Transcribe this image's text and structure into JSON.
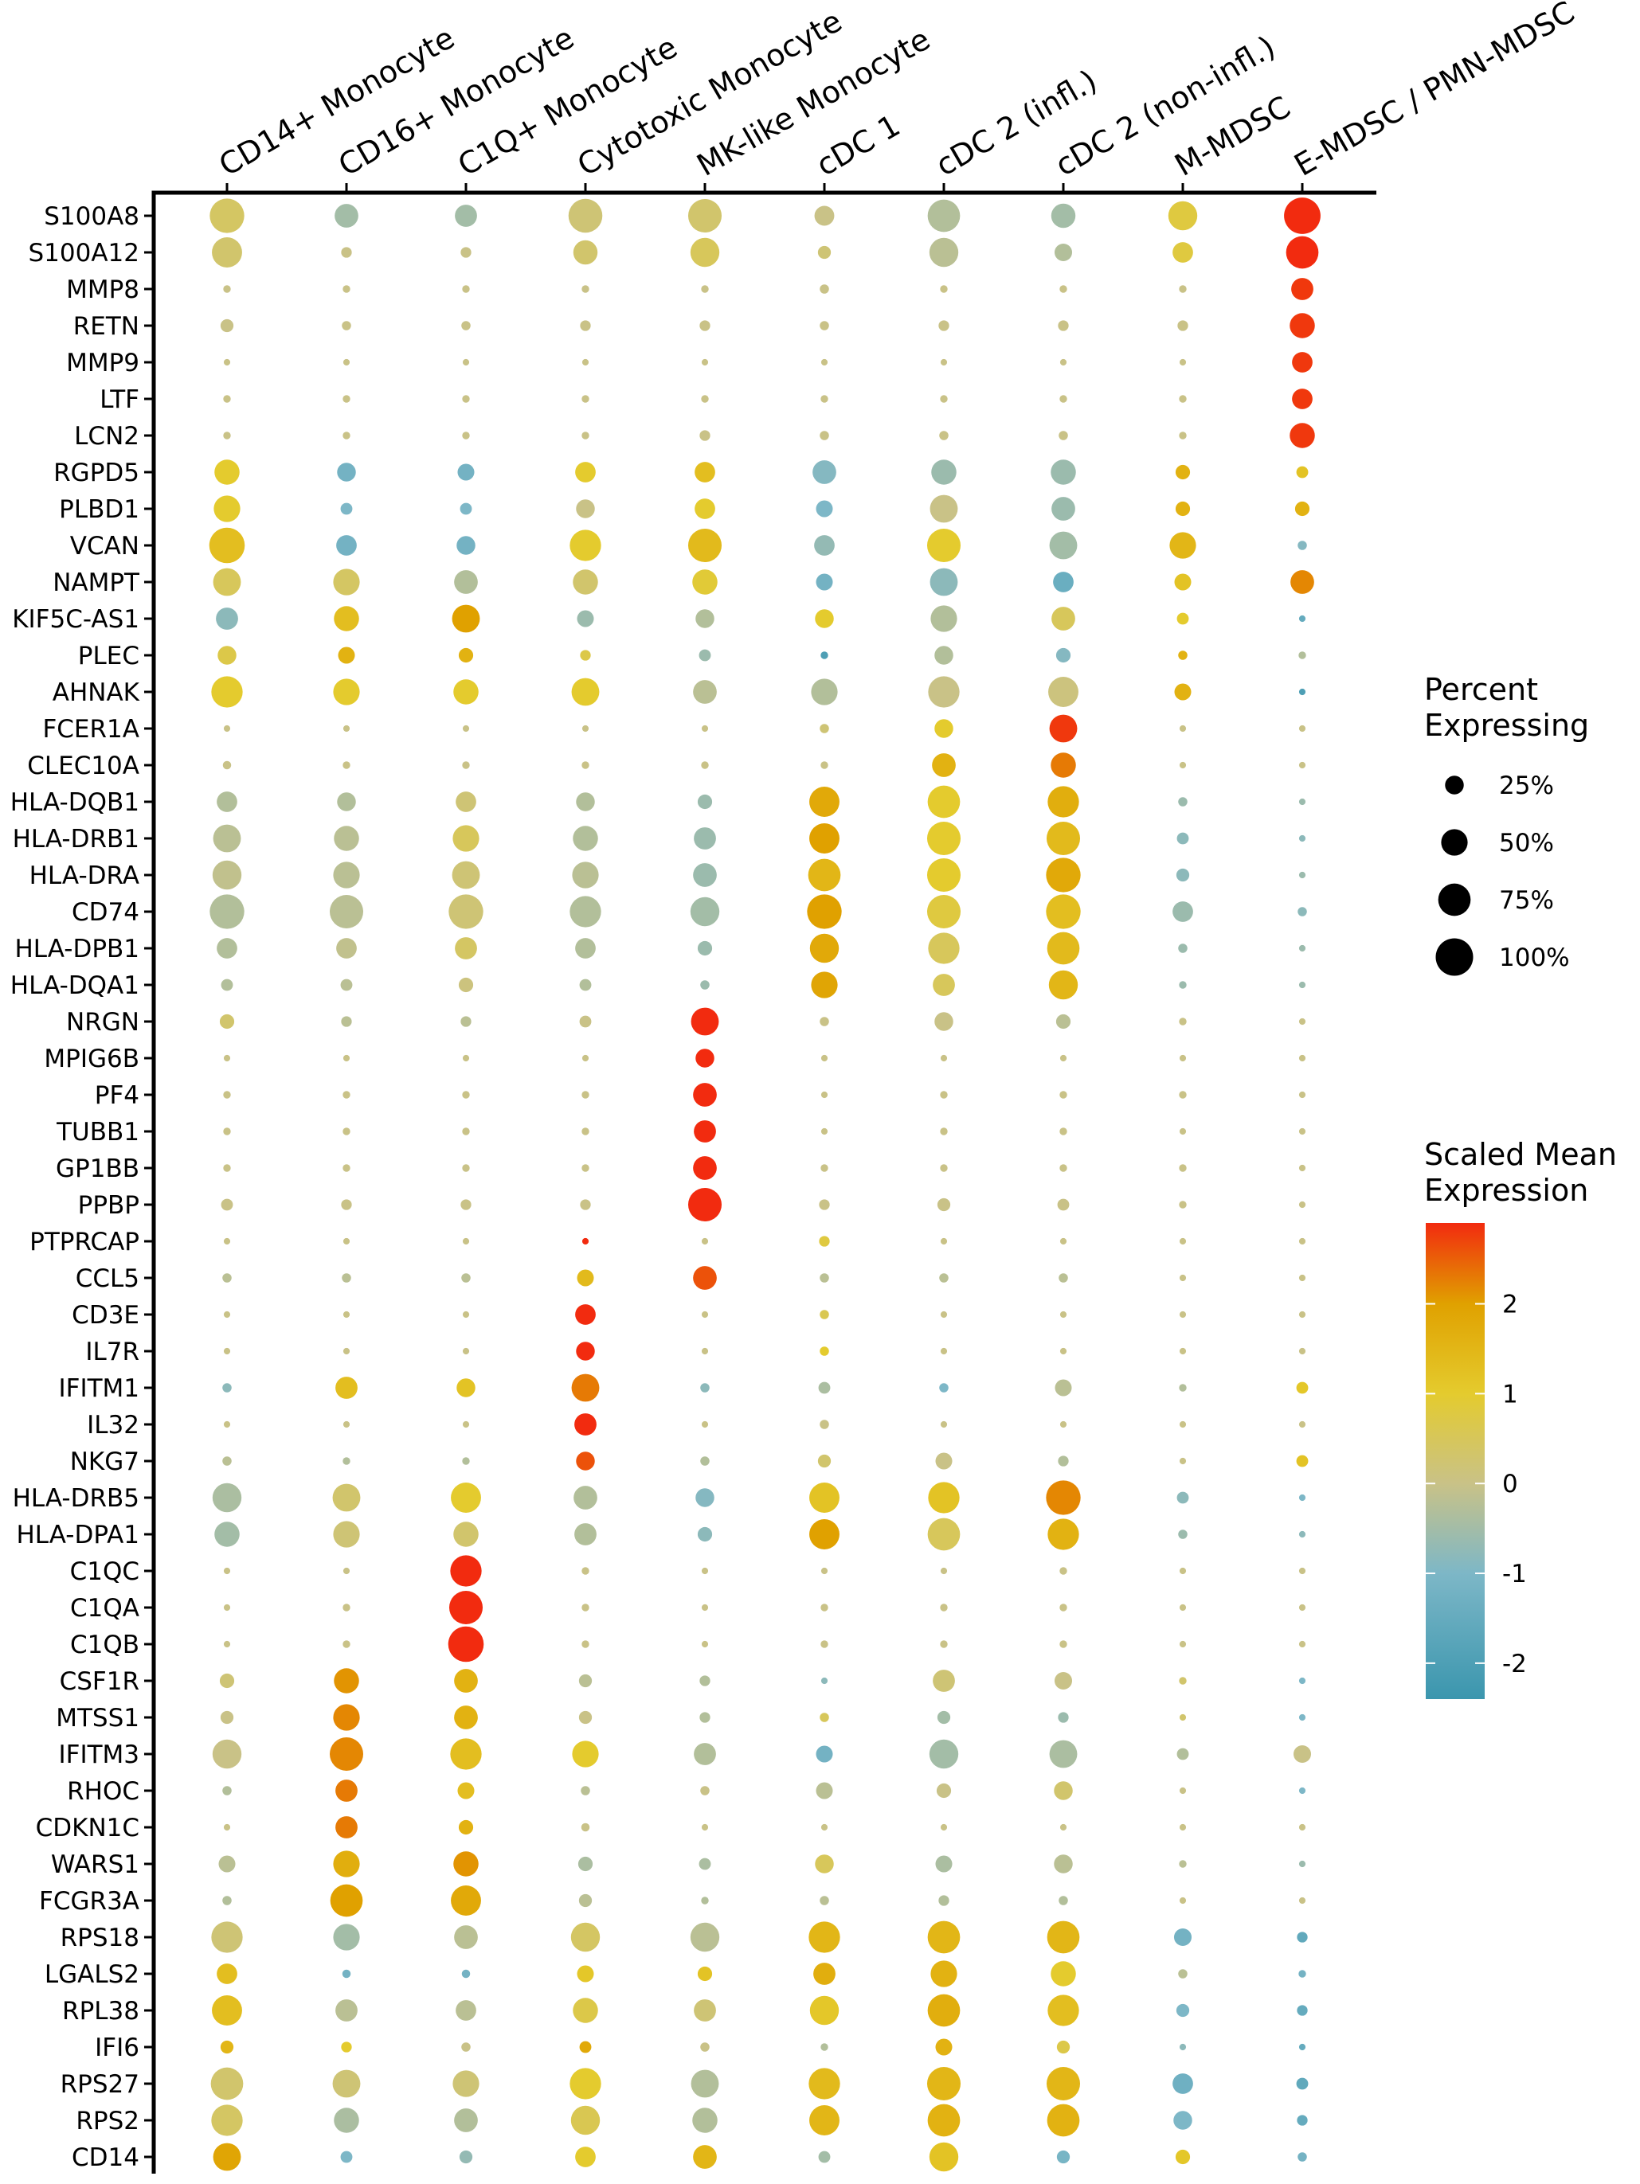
{
  "chart_data": {
    "type": "dotplot",
    "title": "",
    "xlabel": "",
    "ylabel": "",
    "columns": [
      "CD14+ Monocyte",
      "CD16+ Monocyte",
      "C1Q+ Monocyte",
      "Cytotoxic Monocyte",
      "MK-like Monocyte",
      "cDC 1",
      "cDC 2 (infl.)",
      "cDC 2 (non-infl.)",
      "M-MDSC",
      "E-MDSC / PMN-MDSC"
    ],
    "genes": [
      "S100A8",
      "S100A12",
      "MMP8",
      "RETN",
      "MMP9",
      "LTF",
      "LCN2",
      "RGPD5",
      "PLBD1",
      "VCAN",
      "NAMPT",
      "KIF5C-AS1",
      "PLEC",
      "AHNAK",
      "FCER1A",
      "CLEC10A",
      "HLA-DQB1",
      "HLA-DRB1",
      "HLA-DRA",
      "CD74",
      "HLA-DPB1",
      "HLA-DQA1",
      "NRGN",
      "MPIG6B",
      "PF4",
      "TUBB1",
      "GP1BB",
      "PPBP",
      "PTPRCAP",
      "CCL5",
      "CD3E",
      "IL7R",
      "IFITM1",
      "IL32",
      "NKG7",
      "HLA-DRB5",
      "HLA-DPA1",
      "C1QC",
      "C1QA",
      "C1QB",
      "CSF1R",
      "MTSS1",
      "IFITM3",
      "RHOC",
      "CDKN1C",
      "WARS1",
      "FCGR3A",
      "RPS18",
      "LGALS2",
      "RPL38",
      "IFI6",
      "RPS27",
      "RPS2",
      "CD14"
    ],
    "percent_expressing": [
      [
        85,
        40,
        35,
        82,
        80,
        28,
        75,
        42,
        60,
        95
      ],
      [
        65,
        8,
        8,
        42,
        60,
        12,
        60,
        22,
        30,
        75
      ],
      [
        4,
        4,
        4,
        4,
        4,
        6,
        4,
        4,
        4,
        35
      ],
      [
        12,
        6,
        6,
        8,
        8,
        6,
        8,
        8,
        8,
        45
      ],
      [
        3,
        3,
        3,
        3,
        3,
        3,
        3,
        3,
        3,
        30
      ],
      [
        4,
        4,
        4,
        4,
        4,
        4,
        4,
        4,
        4,
        30
      ],
      [
        4,
        4,
        4,
        4,
        8,
        6,
        6,
        6,
        4,
        45
      ],
      [
        45,
        25,
        20,
        30,
        30,
        40,
        45,
        45,
        15,
        10
      ],
      [
        50,
        10,
        10,
        25,
        30,
        20,
        55,
        40,
        15,
        15
      ],
      [
        90,
        30,
        25,
        70,
        80,
        30,
        80,
        55,
        50,
        6
      ],
      [
        55,
        50,
        40,
        45,
        45,
        20,
        55,
        30,
        20,
        40
      ],
      [
        35,
        45,
        55,
        20,
        25,
        25,
        50,
        40,
        10,
        3
      ],
      [
        25,
        20,
        15,
        8,
        10,
        4,
        25,
        15,
        6,
        4
      ],
      [
        70,
        50,
        45,
        55,
        40,
        50,
        70,
        65,
        20,
        3
      ],
      [
        3,
        3,
        3,
        3,
        3,
        6,
        25,
        55,
        3,
        3
      ],
      [
        5,
        4,
        4,
        4,
        4,
        4,
        40,
        45,
        3,
        3
      ],
      [
        30,
        25,
        30,
        25,
        15,
        65,
        75,
        70,
        6,
        3
      ],
      [
        55,
        45,
        50,
        45,
        35,
        65,
        80,
        80,
        10,
        3
      ],
      [
        60,
        50,
        55,
        50,
        40,
        75,
        80,
        85,
        12,
        3
      ],
      [
        85,
        80,
        85,
        70,
        60,
        85,
        80,
        85,
        30,
        6
      ],
      [
        30,
        30,
        35,
        30,
        15,
        60,
        70,
        75,
        6,
        3
      ],
      [
        10,
        10,
        15,
        10,
        6,
        50,
        35,
        60,
        4,
        3
      ],
      [
        15,
        8,
        8,
        10,
        55,
        6,
        25,
        15,
        4,
        3
      ],
      [
        3,
        3,
        3,
        3,
        25,
        3,
        3,
        3,
        3,
        3
      ],
      [
        4,
        4,
        4,
        4,
        40,
        3,
        4,
        4,
        4,
        3
      ],
      [
        4,
        4,
        4,
        4,
        35,
        3,
        4,
        4,
        3,
        3
      ],
      [
        4,
        4,
        4,
        4,
        40,
        4,
        4,
        4,
        4,
        3
      ],
      [
        10,
        8,
        8,
        8,
        80,
        8,
        12,
        10,
        4,
        3
      ],
      [
        3,
        3,
        3,
        3,
        3,
        8,
        3,
        3,
        3,
        3
      ],
      [
        6,
        6,
        6,
        20,
        40,
        6,
        6,
        6,
        3,
        3
      ],
      [
        3,
        3,
        3,
        30,
        3,
        6,
        3,
        3,
        3,
        3
      ],
      [
        3,
        3,
        3,
        25,
        3,
        6,
        3,
        3,
        3,
        3
      ],
      [
        6,
        35,
        25,
        55,
        6,
        10,
        6,
        20,
        4,
        10
      ],
      [
        3,
        3,
        3,
        35,
        3,
        6,
        3,
        3,
        3,
        3
      ],
      [
        6,
        4,
        4,
        25,
        6,
        12,
        20,
        8,
        3,
        10
      ],
      [
        60,
        55,
        65,
        40,
        25,
        65,
        70,
        85,
        10,
        3
      ],
      [
        45,
        50,
        45,
        35,
        15,
        65,
        75,
        70,
        6,
        3
      ],
      [
        3,
        3,
        70,
        4,
        3,
        3,
        3,
        4,
        3,
        3
      ],
      [
        3,
        4,
        80,
        4,
        3,
        4,
        4,
        4,
        3,
        3
      ],
      [
        3,
        4,
        90,
        4,
        3,
        4,
        4,
        4,
        3,
        3
      ],
      [
        15,
        45,
        40,
        12,
        8,
        3,
        35,
        22,
        4,
        3
      ],
      [
        12,
        50,
        40,
        12,
        8,
        6,
        12,
        8,
        3,
        3
      ],
      [
        60,
        80,
        70,
        50,
        35,
        20,
        60,
        55,
        10,
        22
      ],
      [
        6,
        35,
        20,
        6,
        6,
        20,
        15,
        25,
        3,
        3
      ],
      [
        3,
        35,
        15,
        5,
        3,
        3,
        3,
        3,
        3,
        3
      ],
      [
        20,
        50,
        45,
        15,
        10,
        25,
        20,
        25,
        4,
        3
      ],
      [
        6,
        75,
        65,
        12,
        4,
        6,
        8,
        6,
        3,
        3
      ],
      [
        70,
        50,
        40,
        60,
        60,
        70,
        75,
        75,
        22,
        8
      ],
      [
        30,
        5,
        5,
        20,
        15,
        35,
        50,
        45,
        6,
        4
      ],
      [
        65,
        35,
        30,
        45,
        35,
        60,
        75,
        70,
        12,
        8
      ],
      [
        12,
        8,
        6,
        10,
        6,
        4,
        20,
        12,
        3,
        3
      ],
      [
        75,
        55,
        50,
        70,
        55,
        70,
        80,
        80,
        30,
        10
      ],
      [
        70,
        45,
        40,
        60,
        45,
        65,
        75,
        75,
        25,
        8
      ],
      [
        55,
        10,
        12,
        30,
        40,
        10,
        60,
        12,
        15,
        6
      ]
    ],
    "scaled_mean_expression": [
      [
        0.4,
        -0.5,
        -0.5,
        0.2,
        0.3,
        0.0,
        -0.3,
        -0.5,
        0.8,
        2.9
      ],
      [
        0.3,
        0.0,
        0.0,
        0.3,
        0.5,
        0.2,
        -0.2,
        -0.3,
        0.8,
        2.9
      ],
      [
        0.0,
        0.0,
        0.0,
        0.0,
        0.0,
        0.0,
        0.0,
        0.0,
        0.0,
        2.8
      ],
      [
        0.0,
        0.0,
        0.0,
        0.0,
        0.0,
        0.0,
        0.0,
        0.0,
        0.0,
        2.8
      ],
      [
        0.0,
        0.0,
        0.0,
        0.0,
        0.0,
        0.0,
        0.0,
        0.0,
        0.0,
        2.8
      ],
      [
        0.0,
        0.0,
        0.0,
        0.0,
        0.0,
        0.0,
        0.0,
        0.0,
        0.0,
        2.8
      ],
      [
        0.0,
        0.0,
        0.0,
        0.0,
        0.0,
        0.0,
        0.0,
        0.0,
        0.0,
        2.8
      ],
      [
        1.0,
        -1.2,
        -1.2,
        1.0,
        1.3,
        -0.9,
        -0.6,
        -0.6,
        1.6,
        1.2
      ],
      [
        1.0,
        -1.0,
        -1.0,
        0.0,
        1.0,
        -1.0,
        0.0,
        -0.6,
        1.6,
        1.6
      ],
      [
        1.3,
        -1.2,
        -1.2,
        1.0,
        1.4,
        -0.7,
        1.0,
        -0.5,
        1.5,
        -0.9
      ],
      [
        0.5,
        0.4,
        -0.3,
        0.3,
        0.9,
        -1.2,
        -0.8,
        -1.4,
        1.2,
        2.2
      ],
      [
        -0.8,
        1.3,
        2.0,
        -0.6,
        -0.3,
        1.0,
        -0.3,
        0.5,
        1.0,
        -1.5
      ],
      [
        0.7,
        1.6,
        1.6,
        0.7,
        -0.6,
        -2.0,
        -0.3,
        -0.9,
        1.6,
        -0.3
      ],
      [
        1.0,
        1.0,
        1.0,
        1.0,
        -0.2,
        -0.3,
        0.0,
        0.1,
        1.6,
        -2.0
      ],
      [
        0.0,
        0.0,
        0.0,
        0.0,
        0.0,
        0.2,
        1.0,
        2.8,
        0.0,
        0.0
      ],
      [
        0.0,
        0.0,
        0.0,
        0.0,
        0.0,
        0.0,
        1.6,
        2.3,
        0.0,
        0.0
      ],
      [
        -0.3,
        -0.3,
        0.2,
        -0.3,
        -0.6,
        1.8,
        1.0,
        1.7,
        -0.6,
        -0.6
      ],
      [
        -0.2,
        -0.2,
        0.5,
        -0.3,
        -0.6,
        2.0,
        1.0,
        1.4,
        -0.8,
        -0.8
      ],
      [
        -0.1,
        -0.2,
        0.2,
        -0.2,
        -0.6,
        1.5,
        1.0,
        1.8,
        -0.8,
        -0.6
      ],
      [
        -0.3,
        -0.2,
        0.2,
        -0.3,
        -0.5,
        2.0,
        0.8,
        1.3,
        -0.6,
        -0.8
      ],
      [
        -0.3,
        -0.1,
        0.4,
        -0.3,
        -0.6,
        1.8,
        0.5,
        1.4,
        -0.6,
        -0.6
      ],
      [
        -0.3,
        -0.2,
        0.1,
        -0.3,
        -0.6,
        1.9,
        0.5,
        1.5,
        -0.6,
        -0.6
      ],
      [
        0.3,
        -0.2,
        -0.2,
        0.0,
        2.9,
        0.0,
        0.0,
        -0.2,
        0.0,
        0.0
      ],
      [
        0.0,
        0.0,
        0.0,
        0.0,
        2.9,
        0.0,
        0.0,
        0.0,
        0.0,
        0.0
      ],
      [
        0.0,
        0.0,
        0.0,
        0.0,
        2.9,
        0.0,
        0.0,
        0.0,
        0.0,
        0.0
      ],
      [
        0.0,
        0.0,
        0.0,
        0.0,
        2.9,
        0.0,
        0.0,
        0.0,
        0.0,
        0.0
      ],
      [
        0.0,
        0.0,
        0.0,
        0.0,
        2.9,
        0.0,
        0.0,
        0.0,
        0.0,
        0.0
      ],
      [
        0.0,
        0.0,
        0.0,
        0.0,
        2.9,
        0.0,
        0.0,
        0.0,
        0.0,
        0.0
      ],
      [
        0.0,
        0.0,
        0.0,
        2.9,
        0.0,
        0.8,
        0.0,
        0.0,
        0.0,
        0.0
      ],
      [
        -0.2,
        -0.2,
        -0.2,
        1.4,
        2.6,
        -0.2,
        -0.2,
        -0.2,
        0.0,
        0.0
      ],
      [
        0.0,
        0.0,
        0.0,
        2.9,
        0.0,
        0.6,
        0.0,
        0.0,
        0.0,
        0.0
      ],
      [
        0.0,
        0.0,
        0.0,
        2.9,
        0.0,
        1.0,
        0.0,
        0.0,
        0.0,
        0.0
      ],
      [
        -0.8,
        1.3,
        1.2,
        2.3,
        -0.8,
        -0.4,
        -1.0,
        -0.2,
        -0.3,
        1.1
      ],
      [
        0.0,
        0.0,
        0.0,
        2.9,
        0.0,
        0.0,
        0.0,
        0.0,
        0.0,
        0.0
      ],
      [
        -0.2,
        -0.3,
        -0.3,
        2.6,
        -0.3,
        0.3,
        0.0,
        -0.3,
        0.0,
        1.2
      ],
      [
        -0.4,
        0.3,
        1.0,
        -0.3,
        -0.9,
        1.2,
        1.2,
        2.2,
        -0.8,
        -1.0
      ],
      [
        -0.5,
        0.2,
        0.3,
        -0.3,
        -0.8,
        2.0,
        0.5,
        1.6,
        -0.6,
        -0.8
      ],
      [
        0.0,
        0.0,
        2.9,
        0.0,
        0.0,
        0.0,
        0.0,
        0.0,
        0.0,
        0.0
      ],
      [
        0.0,
        0.0,
        2.9,
        0.0,
        0.0,
        0.0,
        0.0,
        0.0,
        0.0,
        0.0
      ],
      [
        0.0,
        0.0,
        2.9,
        0.0,
        0.0,
        0.0,
        0.0,
        0.0,
        0.0,
        0.0
      ],
      [
        0.2,
        2.1,
        1.6,
        -0.2,
        -0.3,
        -0.8,
        0.2,
        0.0,
        0.3,
        -1.0
      ],
      [
        0.0,
        2.2,
        1.6,
        0.0,
        -0.3,
        0.5,
        -0.5,
        -0.6,
        0.3,
        -1.0
      ],
      [
        0.0,
        2.2,
        1.3,
        1.0,
        -0.3,
        -1.2,
        -0.5,
        -0.4,
        -0.3,
        0.0
      ],
      [
        -0.3,
        2.3,
        1.3,
        -0.2,
        0.0,
        -0.2,
        0.0,
        0.3,
        0.0,
        -1.0
      ],
      [
        0.0,
        2.3,
        1.6,
        0.0,
        0.0,
        0.0,
        0.0,
        0.0,
        0.0,
        0.0
      ],
      [
        -0.2,
        1.7,
        2.1,
        -0.4,
        -0.4,
        0.5,
        -0.4,
        -0.2,
        -0.2,
        -0.6
      ],
      [
        -0.3,
        2.0,
        1.8,
        -0.2,
        -0.3,
        -0.2,
        -0.3,
        -0.3,
        0.0,
        0.0
      ],
      [
        0.2,
        -0.5,
        -0.2,
        0.4,
        -0.2,
        1.5,
        1.5,
        1.5,
        -1.2,
        -1.6
      ],
      [
        1.3,
        -1.2,
        -1.2,
        1.1,
        1.2,
        1.7,
        1.6,
        1.0,
        -0.2,
        -1.2
      ],
      [
        1.3,
        -0.2,
        -0.2,
        0.7,
        0.2,
        1.1,
        1.7,
        1.3,
        -1.0,
        -1.5
      ],
      [
        1.5,
        1.0,
        0.0,
        1.8,
        0.0,
        -0.3,
        1.6,
        0.7,
        -0.8,
        -1.5
      ],
      [
        0.3,
        0.2,
        0.2,
        1.0,
        -0.3,
        1.4,
        1.5,
        1.5,
        -1.3,
        -1.6
      ],
      [
        0.4,
        -0.4,
        -0.3,
        0.6,
        -0.3,
        1.5,
        1.6,
        1.6,
        -1.0,
        -1.5
      ],
      [
        1.9,
        -1.0,
        -0.7,
        1.0,
        1.5,
        -0.5,
        1.2,
        -1.1,
        1.1,
        -1.2
      ]
    ],
    "size_legend": {
      "title_line1": "Percent",
      "title_line2": "Expressing",
      "entries": [
        {
          "value": 25,
          "label": "25%"
        },
        {
          "value": 50,
          "label": "50%"
        },
        {
          "value": 75,
          "label": "75%"
        },
        {
          "value": 100,
          "label": "100%"
        }
      ]
    },
    "color_legend": {
      "title_line1": "Scaled Mean",
      "title_line2": "Expression",
      "range": [
        -2.4,
        2.9
      ],
      "ticks": [
        {
          "value": 2,
          "label": "2"
        },
        {
          "value": 1,
          "label": "1"
        },
        {
          "value": 0,
          "label": "0"
        },
        {
          "value": -1,
          "label": "-1"
        },
        {
          "value": -2,
          "label": "-2"
        }
      ],
      "gradient": [
        {
          "value": -2.4,
          "color": "#3b96ae"
        },
        {
          "value": -1.0,
          "color": "#7db7c7"
        },
        {
          "value": 0.0,
          "color": "#c9c287"
        },
        {
          "value": 1.0,
          "color": "#e4cb2e"
        },
        {
          "value": 2.0,
          "color": "#e0a100"
        },
        {
          "value": 2.9,
          "color": "#f22b0f"
        }
      ]
    },
    "colors": {
      "axis": "#000000",
      "text": "#000000",
      "background": "#ffffff"
    }
  }
}
